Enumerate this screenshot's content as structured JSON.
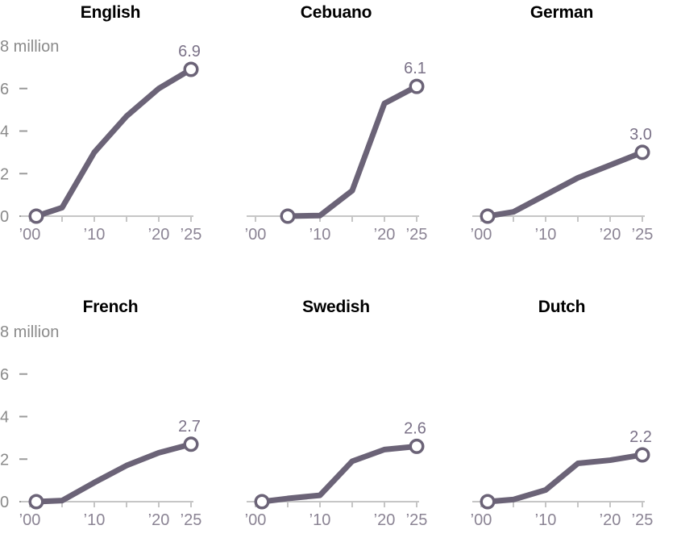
{
  "figure": {
    "description": "Small multiples of article counts (millions) by language over time",
    "unit": "million"
  },
  "colors": {
    "background": "#ffffff",
    "line": "#6b6377",
    "marker_fill": "#ffffff",
    "value_label": "#7b7288",
    "x_tick_label": "#8b8494",
    "y_tick_label": "#8a8a8a",
    "y_dash": "#9b9b9b",
    "axis_line": "#c6c6c6",
    "title": "#000000"
  },
  "axes": {
    "y_top_label": "8 million",
    "y_tick_values": [
      6,
      4,
      2,
      0
    ],
    "y_range": [
      0,
      8
    ],
    "x_range": [
      2000,
      2025
    ],
    "x_ticks": [
      {
        "year": 2000,
        "label": "’00"
      },
      {
        "year": 2005,
        "label": ""
      },
      {
        "year": 2010,
        "label": "’10"
      },
      {
        "year": 2015,
        "label": ""
      },
      {
        "year": 2020,
        "label": "’20"
      },
      {
        "year": 2025,
        "label": "’25"
      }
    ]
  },
  "chart_data": [
    {
      "type": "line",
      "title": "English",
      "x": [
        2001,
        2005,
        2010,
        2015,
        2020,
        2025
      ],
      "y": [
        0,
        0.4,
        3.0,
        4.7,
        6.0,
        6.9
      ],
      "end_label": "6.9",
      "show_y_axis": true
    },
    {
      "type": "line",
      "title": "Cebuano",
      "x": [
        2005,
        2010,
        2015,
        2020,
        2025
      ],
      "y": [
        0,
        0.03,
        1.2,
        5.3,
        6.1
      ],
      "end_label": "6.1",
      "show_y_axis": false
    },
    {
      "type": "line",
      "title": "German",
      "x": [
        2001,
        2005,
        2010,
        2015,
        2020,
        2025
      ],
      "y": [
        0,
        0.2,
        1.0,
        1.8,
        2.4,
        3.0
      ],
      "end_label": "3.0",
      "show_y_axis": false
    },
    {
      "type": "line",
      "title": "French",
      "x": [
        2001,
        2005,
        2010,
        2015,
        2020,
        2025
      ],
      "y": [
        0,
        0.05,
        0.9,
        1.7,
        2.3,
        2.7
      ],
      "end_label": "2.7",
      "show_y_axis": true
    },
    {
      "type": "line",
      "title": "Swedish",
      "x": [
        2001,
        2005,
        2010,
        2015,
        2020,
        2025
      ],
      "y": [
        0,
        0.15,
        0.3,
        1.9,
        2.45,
        2.6
      ],
      "end_label": "2.6",
      "show_y_axis": false
    },
    {
      "type": "line",
      "title": "Dutch",
      "x": [
        2001,
        2005,
        2010,
        2015,
        2020,
        2025
      ],
      "y": [
        0,
        0.1,
        0.55,
        1.8,
        1.95,
        2.2
      ],
      "end_label": "2.2",
      "show_y_axis": false
    }
  ],
  "layout_hints": {
    "rows": 2,
    "cols": 3,
    "grid": "off",
    "legend": "none"
  }
}
